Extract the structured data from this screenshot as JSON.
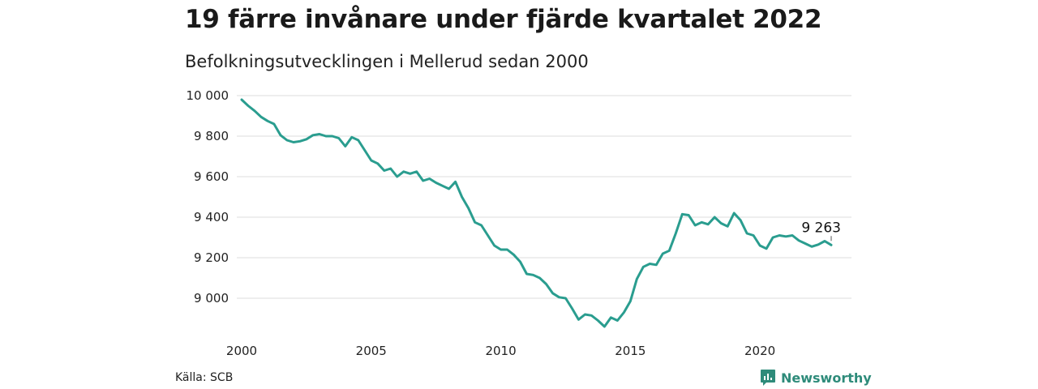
{
  "header": {
    "title": "19 färre invånare under fjärde kvartalet 2022",
    "subtitle": "Befolkningsutvecklingen i Mellerud sedan 2000"
  },
  "footer": {
    "source": "Källa: SCB",
    "brand": "Newsworthy",
    "brand_icon": "bar-chart-icon"
  },
  "colors": {
    "line": "#2a9d8f",
    "grid": "#dddddd",
    "brand": "#2e8b7a"
  },
  "chart_data": {
    "type": "line",
    "title": "19 färre invånare under fjärde kvartalet 2022",
    "subtitle": "Befolkningsutvecklingen i Mellerud sedan 2000",
    "xlabel": "",
    "ylabel": "",
    "grid": true,
    "xlim": [
      2000,
      2023
    ],
    "ylim": [
      8850,
      10000
    ],
    "x_ticks": [
      2000,
      2005,
      2010,
      2015,
      2020
    ],
    "x_tick_labels": [
      "2000",
      "2005",
      "2010",
      "2015",
      "2020"
    ],
    "y_ticks": [
      9000,
      9200,
      9400,
      9600,
      9800,
      10000
    ],
    "y_tick_labels": [
      "9 000",
      "9 200",
      "9 400",
      "9 600",
      "9 800",
      "10 000"
    ],
    "annotation": {
      "x": 2022.75,
      "y": 9263,
      "text": "9 263"
    },
    "series": [
      {
        "values": [
          [
            2000.0,
            9980
          ],
          [
            2000.25,
            9950
          ],
          [
            2000.5,
            9925
          ],
          [
            2000.75,
            9895
          ],
          [
            2001.0,
            9875
          ],
          [
            2001.25,
            9860
          ],
          [
            2001.5,
            9805
          ],
          [
            2001.75,
            9780
          ],
          [
            2002.0,
            9770
          ],
          [
            2002.25,
            9775
          ],
          [
            2002.5,
            9785
          ],
          [
            2002.75,
            9805
          ],
          [
            2003.0,
            9810
          ],
          [
            2003.25,
            9800
          ],
          [
            2003.5,
            9800
          ],
          [
            2003.75,
            9790
          ],
          [
            2004.0,
            9750
          ],
          [
            2004.25,
            9795
          ],
          [
            2004.5,
            9780
          ],
          [
            2004.75,
            9730
          ],
          [
            2005.0,
            9680
          ],
          [
            2005.25,
            9665
          ],
          [
            2005.5,
            9630
          ],
          [
            2005.75,
            9640
          ],
          [
            2006.0,
            9600
          ],
          [
            2006.25,
            9625
          ],
          [
            2006.5,
            9615
          ],
          [
            2006.75,
            9625
          ],
          [
            2007.0,
            9580
          ],
          [
            2007.25,
            9590
          ],
          [
            2007.5,
            9570
          ],
          [
            2007.75,
            9555
          ],
          [
            2008.0,
            9540
          ],
          [
            2008.25,
            9575
          ],
          [
            2008.5,
            9500
          ],
          [
            2008.75,
            9445
          ],
          [
            2009.0,
            9375
          ],
          [
            2009.25,
            9360
          ],
          [
            2009.5,
            9310
          ],
          [
            2009.75,
            9260
          ],
          [
            2010.0,
            9240
          ],
          [
            2010.25,
            9240
          ],
          [
            2010.5,
            9215
          ],
          [
            2010.75,
            9180
          ],
          [
            2011.0,
            9120
          ],
          [
            2011.25,
            9115
          ],
          [
            2011.5,
            9100
          ],
          [
            2011.75,
            9070
          ],
          [
            2012.0,
            9025
          ],
          [
            2012.25,
            9005
          ],
          [
            2012.5,
            9000
          ],
          [
            2012.75,
            8950
          ],
          [
            2013.0,
            8895
          ],
          [
            2013.25,
            8920
          ],
          [
            2013.5,
            8915
          ],
          [
            2013.75,
            8890
          ],
          [
            2014.0,
            8860
          ],
          [
            2014.25,
            8905
          ],
          [
            2014.5,
            8890
          ],
          [
            2014.75,
            8930
          ],
          [
            2015.0,
            8985
          ],
          [
            2015.25,
            9095
          ],
          [
            2015.5,
            9155
          ],
          [
            2015.75,
            9170
          ],
          [
            2016.0,
            9165
          ],
          [
            2016.25,
            9220
          ],
          [
            2016.5,
            9235
          ],
          [
            2016.75,
            9320
          ],
          [
            2017.0,
            9415
          ],
          [
            2017.25,
            9410
          ],
          [
            2017.5,
            9360
          ],
          [
            2017.75,
            9375
          ],
          [
            2018.0,
            9365
          ],
          [
            2018.25,
            9400
          ],
          [
            2018.5,
            9370
          ],
          [
            2018.75,
            9355
          ],
          [
            2019.0,
            9420
          ],
          [
            2019.25,
            9385
          ],
          [
            2019.5,
            9320
          ],
          [
            2019.75,
            9310
          ],
          [
            2020.0,
            9260
          ],
          [
            2020.25,
            9245
          ],
          [
            2020.5,
            9300
          ],
          [
            2020.75,
            9310
          ],
          [
            2021.0,
            9305
          ],
          [
            2021.25,
            9310
          ],
          [
            2021.5,
            9285
          ],
          [
            2021.75,
            9270
          ],
          [
            2022.0,
            9255
          ],
          [
            2022.25,
            9265
          ],
          [
            2022.5,
            9282
          ],
          [
            2022.75,
            9263
          ]
        ]
      }
    ]
  }
}
